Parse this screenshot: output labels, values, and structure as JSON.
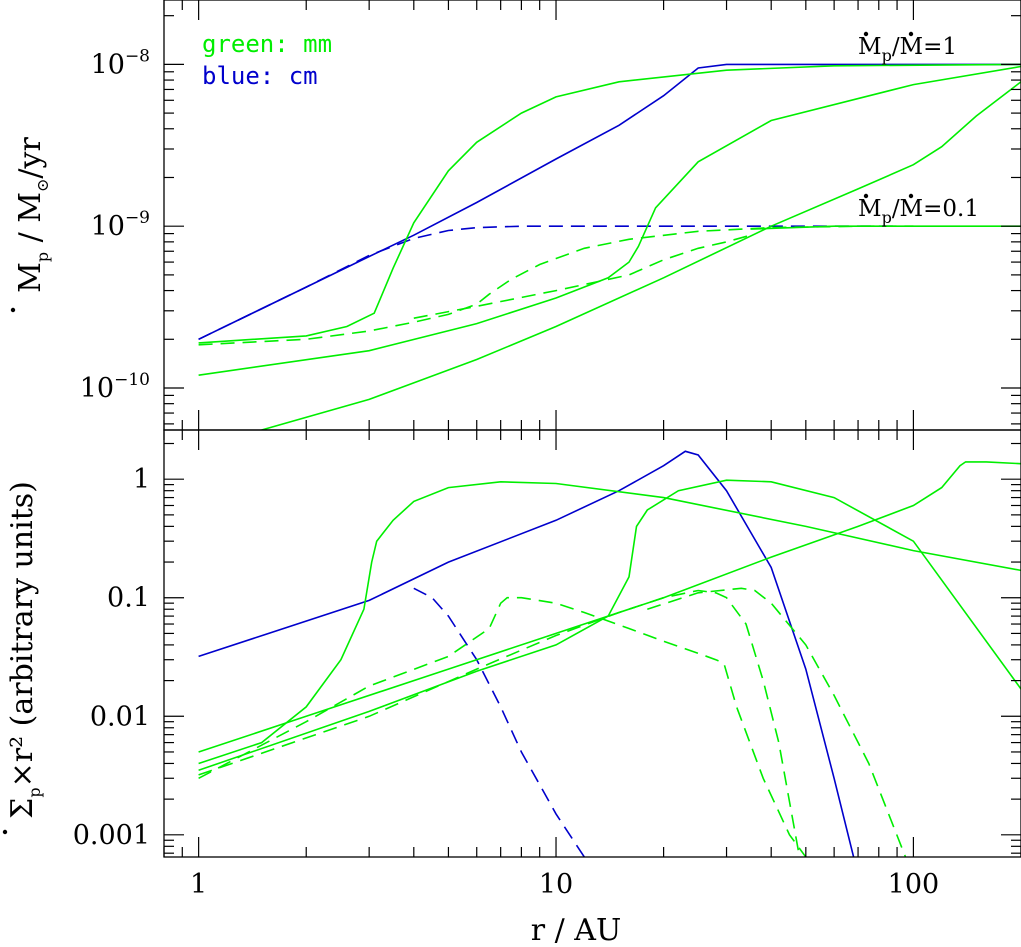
{
  "chart_data": [
    {
      "type": "line",
      "panel": "top",
      "xscale": "log",
      "yscale": "log",
      "xlim": [
        0.8,
        200
      ],
      "ylim": [
        5.5e-11,
        2.5e-08
      ],
      "xlabel": "r / AU",
      "ylabel": {
        "main": "M",
        "sub": "p",
        "rest": " / M",
        "rest_sub": "⊙",
        "tail": "/yr"
      },
      "yticks": [
        {
          "value": 1e-10,
          "base": "10",
          "exp": "−10"
        },
        {
          "value": 1e-09,
          "base": "10",
          "exp": "−9"
        },
        {
          "value": 1e-08,
          "base": "10",
          "exp": "−8"
        }
      ],
      "legend": [
        {
          "text": "green: mm",
          "color": "#00ee00"
        },
        {
          "text": "blue: cm",
          "color": "#0000cc"
        }
      ],
      "annotations": [
        {
          "text": "M",
          "sub": "p",
          "rest": "/M=1"
        },
        {
          "text": "M",
          "sub": "p",
          "rest": "/M=0.1"
        }
      ],
      "series": [
        {
          "color": "#0000cc",
          "dash": false,
          "x": [
            1,
            2,
            3,
            4,
            6,
            10,
            15,
            20,
            25,
            30,
            200
          ],
          "y": [
            2e-10,
            4.2e-10,
            6.5e-10,
            8.8e-10,
            1.4e-09,
            2.6e-09,
            4.2e-09,
            6.4e-09,
            9.5e-09,
            1e-08,
            1e-08
          ]
        },
        {
          "color": "#0000cc",
          "dash": true,
          "x": [
            1,
            2,
            3,
            4,
            5,
            6,
            8,
            10,
            90
          ],
          "y": [
            2e-10,
            4.2e-10,
            6.6e-10,
            8.4e-10,
            9.4e-10,
            9.8e-10,
            1e-09,
            1e-09,
            1e-09
          ]
        },
        {
          "color": "#00ee00",
          "dash": false,
          "x": [
            1,
            2,
            2.6,
            3.1,
            3.5,
            4,
            5,
            6,
            8,
            10,
            15,
            30,
            60,
            200
          ],
          "y": [
            1.9e-10,
            2.1e-10,
            2.4e-10,
            2.9e-10,
            5.5e-10,
            1.05e-09,
            2.2e-09,
            3.3e-09,
            5e-09,
            6.3e-09,
            7.8e-09,
            9.2e-09,
            9.8e-09,
            1e-08
          ]
        },
        {
          "color": "#00ee00",
          "dash": false,
          "x": [
            1,
            3,
            6,
            10,
            14,
            16,
            17,
            19,
            25,
            40,
            100,
            200
          ],
          "y": [
            1.2e-10,
            1.7e-10,
            2.5e-10,
            3.6e-10,
            4.8e-10,
            6e-10,
            7.5e-10,
            1.3e-09,
            2.5e-09,
            4.5e-09,
            7.5e-09,
            9.7e-09
          ]
        },
        {
          "color": "#00ee00",
          "dash": false,
          "x": [
            1.5,
            3,
            6,
            10,
            20,
            40,
            70,
            100,
            120,
            150,
            200
          ],
          "y": [
            5.5e-11,
            8.5e-11,
            1.5e-10,
            2.4e-10,
            4.8e-10,
            1e-09,
            1.7e-09,
            2.4e-09,
            3.1e-09,
            4.8e-09,
            7.8e-09
          ]
        },
        {
          "color": "#00ee00",
          "dash": true,
          "x": [
            1,
            2,
            3,
            4,
            5,
            6,
            6.5,
            7.5,
            9,
            12,
            16,
            25,
            40,
            70,
            100
          ],
          "y": [
            1.85e-10,
            2e-10,
            2.25e-10,
            2.55e-10,
            2.85e-10,
            3.3e-10,
            3.8e-10,
            4.7e-10,
            5.8e-10,
            7.3e-10,
            8.3e-10,
            9.3e-10,
            9.8e-10,
            1e-09,
            1e-09
          ]
        },
        {
          "color": "#00ee00",
          "dash": true,
          "x": [
            4,
            6,
            10,
            16,
            20,
            25,
            30,
            35
          ],
          "y": [
            2.7e-10,
            3.2e-10,
            4e-10,
            5e-10,
            6.2e-10,
            7.3e-10,
            8e-10,
            8.8e-10
          ]
        },
        {
          "color": "#00ee00",
          "dash": false,
          "x": [
            35,
            60,
            200
          ],
          "y": [
            9.6e-10,
            1e-09,
            1e-09
          ]
        }
      ]
    },
    {
      "type": "line",
      "panel": "bottom",
      "xscale": "log",
      "yscale": "log",
      "xlim": [
        0.8,
        200
      ],
      "ylim": [
        0.00065,
        2.6
      ],
      "xlabel": "r / AU",
      "xticks": [
        {
          "value": 1,
          "label": "1"
        },
        {
          "value": 10,
          "label": "10"
        },
        {
          "value": 100,
          "label": "100"
        }
      ],
      "ylabel": {
        "main": "Σ",
        "sub": "p",
        "rest": "×r²",
        "tail": " (arbitrary units)"
      },
      "yticks": [
        {
          "value": 0.001,
          "label": "0.001"
        },
        {
          "value": 0.01,
          "label": "0.01"
        },
        {
          "value": 0.1,
          "label": "0.1"
        },
        {
          "value": 1,
          "label": "1"
        }
      ],
      "series": [
        {
          "color": "#0000cc",
          "dash": false,
          "x": [
            1,
            3,
            5,
            10,
            15,
            20,
            23,
            25,
            30,
            40,
            50,
            60,
            68
          ],
          "y": [
            0.032,
            0.095,
            0.2,
            0.45,
            0.8,
            1.3,
            1.72,
            1.6,
            0.8,
            0.18,
            0.025,
            0.003,
            0.00065
          ]
        },
        {
          "color": "#0000cc",
          "dash": true,
          "x": [
            4,
            4.5,
            5,
            6,
            7,
            8,
            10,
            12
          ],
          "y": [
            0.12,
            0.1,
            0.07,
            0.03,
            0.012,
            0.005,
            0.0015,
            0.00065
          ]
        },
        {
          "color": "#00ee00",
          "dash": false,
          "x": [
            1,
            1.5,
            2,
            2.5,
            2.9,
            3.05,
            3.15,
            3.5,
            4,
            5,
            7,
            10,
            20,
            50,
            100,
            200
          ],
          "y": [
            0.004,
            0.006,
            0.012,
            0.03,
            0.08,
            0.2,
            0.3,
            0.45,
            0.65,
            0.85,
            0.95,
            0.92,
            0.7,
            0.4,
            0.25,
            0.17
          ]
        },
        {
          "color": "#00ee00",
          "dash": false,
          "x": [
            1,
            3,
            6,
            10,
            14,
            16,
            16.8,
            18,
            22,
            30,
            40,
            60,
            100,
            200
          ],
          "y": [
            0.0035,
            0.011,
            0.024,
            0.04,
            0.07,
            0.15,
            0.4,
            0.55,
            0.8,
            0.98,
            0.95,
            0.7,
            0.3,
            0.017
          ]
        },
        {
          "color": "#00ee00",
          "dash": false,
          "x": [
            1,
            2,
            5,
            10,
            20,
            40,
            70,
            100,
            120,
            135,
            140,
            160,
            200
          ],
          "y": [
            0.005,
            0.01,
            0.025,
            0.05,
            0.1,
            0.22,
            0.4,
            0.6,
            0.85,
            1.3,
            1.4,
            1.4,
            1.35
          ]
        },
        {
          "color": "#00ee00",
          "dash": true,
          "x": [
            1,
            2,
            3,
            5,
            6.5,
            7,
            7.3,
            8,
            10,
            12,
            16,
            20,
            25,
            28,
            29.5,
            32,
            38,
            45,
            50
          ],
          "y": [
            0.003,
            0.009,
            0.018,
            0.032,
            0.055,
            0.09,
            0.1,
            0.1,
            0.09,
            0.075,
            0.055,
            0.043,
            0.034,
            0.03,
            0.028,
            0.012,
            0.003,
            0.001,
            0.00065
          ]
        },
        {
          "color": "#00ee00",
          "dash": true,
          "x": [
            1,
            3,
            6,
            10,
            15,
            20,
            25,
            28,
            30,
            34,
            38,
            42,
            48
          ],
          "y": [
            0.0032,
            0.01,
            0.025,
            0.048,
            0.075,
            0.1,
            0.115,
            0.11,
            0.1,
            0.06,
            0.02,
            0.006,
            0.00065
          ]
        },
        {
          "color": "#00ee00",
          "dash": true,
          "x": [
            18,
            25,
            33,
            36,
            40,
            50,
            60,
            75,
            95
          ],
          "y": [
            0.08,
            0.11,
            0.12,
            0.115,
            0.09,
            0.04,
            0.015,
            0.004,
            0.00065
          ]
        }
      ]
    }
  ]
}
